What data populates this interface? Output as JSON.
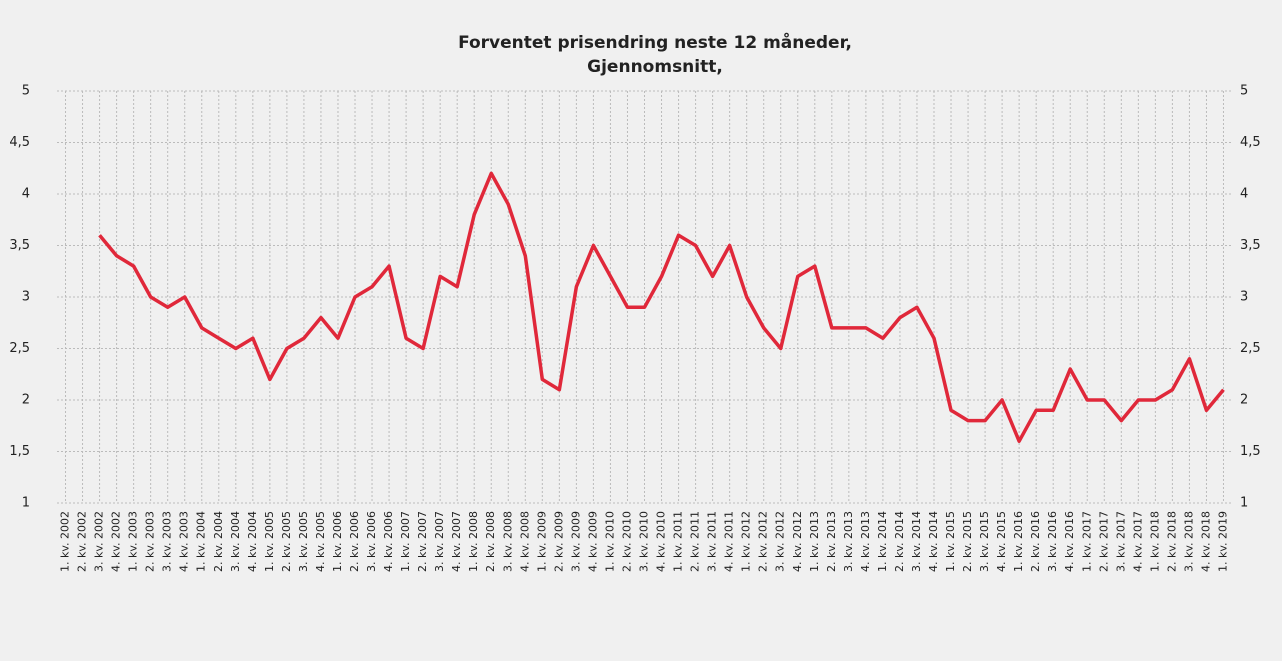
{
  "chart_data": {
    "type": "line",
    "title": [
      "Forventet prisendring neste 12 måneder,",
      "Gjennomsnitt,"
    ],
    "categories": [
      "1. kv. 2002",
      "2. kv. 2002",
      "3. kv. 2002",
      "4. kv. 2002",
      "1. kv. 2003",
      "2. kv. 2003",
      "3. kv. 2003",
      "4. kv. 2003",
      "1. kv. 2004",
      "2. kv. 2004",
      "3. kv. 2004",
      "4. kv. 2004",
      "1. kv. 2005",
      "2. kv. 2005",
      "3. kv. 2005",
      "4. kv. 2005",
      "1. kv. 2006",
      "2. kv. 2006",
      "3. kv. 2006",
      "4. kv. 2006",
      "1. kv. 2007",
      "2. kv. 2007",
      "3. kv. 2007",
      "4. kv. 2007",
      "1. kv. 2008",
      "2. kv. 2008",
      "3. kv. 2008",
      "4. kv. 2008",
      "1. kv. 2009",
      "2. kv. 2009",
      "3. kv. 2009",
      "4. kv. 2009",
      "1. kv. 2010",
      "2. kv. 2010",
      "3. kv. 2010",
      "4. kv. 2010",
      "1. kv. 2011",
      "2. kv. 2011",
      "3. kv. 2011",
      "4. kv. 2011",
      "1. kv. 2012",
      "2. kv. 2012",
      "3. kv. 2012",
      "4. kv. 2012",
      "1. kv. 2013",
      "2. kv. 2013",
      "3. kv. 2013",
      "4. kv. 2013",
      "1. kv. 2014",
      "2. kv. 2014",
      "3. kv. 2014",
      "4. kv. 2014",
      "1. kv. 2015",
      "2. kv. 2015",
      "3. kv. 2015",
      "4. kv. 2015",
      "1. kv. 2016",
      "2. kv. 2016",
      "3. kv. 2016",
      "4. kv. 2016",
      "1. kv. 2017",
      "2. kv. 2017",
      "3. kv. 2017",
      "4. kv. 2017",
      "1. kv. 2018",
      "2. kv. 2018",
      "3. kv. 2018",
      "4. kv. 2018",
      "1. kv. 2019"
    ],
    "series": [
      {
        "color": "#e0283a",
        "values": [
          null,
          null,
          3.6,
          3.4,
          3.3,
          3.0,
          2.9,
          3.0,
          2.7,
          2.6,
          2.5,
          2.6,
          2.2,
          2.5,
          2.6,
          2.8,
          2.6,
          3.0,
          3.1,
          3.3,
          2.6,
          2.5,
          3.2,
          3.1,
          3.8,
          4.2,
          3.9,
          3.4,
          2.2,
          2.1,
          3.1,
          3.5,
          3.2,
          2.9,
          2.9,
          3.2,
          3.6,
          3.5,
          3.2,
          3.5,
          3.0,
          2.7,
          2.5,
          3.2,
          3.3,
          2.7,
          2.7,
          2.7,
          2.6,
          2.8,
          2.9,
          2.6,
          1.9,
          1.8,
          1.8,
          2.0,
          1.6,
          1.9,
          1.9,
          2.3,
          2.0,
          2.0,
          1.8,
          2.0,
          2.0,
          2.1,
          2.4,
          1.9,
          2.1
        ]
      }
    ],
    "ylim": [
      1,
      5
    ],
    "yticks": [
      1,
      {
        "value": 1.5,
        "label": "1,5"
      },
      2,
      {
        "value": 2.5,
        "label": "2,5"
      },
      3,
      {
        "value": 3.5,
        "label": "3,5"
      },
      4,
      {
        "value": 4.5,
        "label": "4,5"
      },
      5
    ],
    "y2lim": [
      1,
      5
    ],
    "y2ticks": [
      1,
      {
        "value": 1.5,
        "label": "1,5"
      },
      2,
      {
        "value": 2.5,
        "label": "2,5"
      },
      3,
      {
        "value": 3.5,
        "label": "3,5"
      },
      4,
      {
        "value": 4.5,
        "label": "4,5"
      },
      5
    ],
    "grid": true
  }
}
